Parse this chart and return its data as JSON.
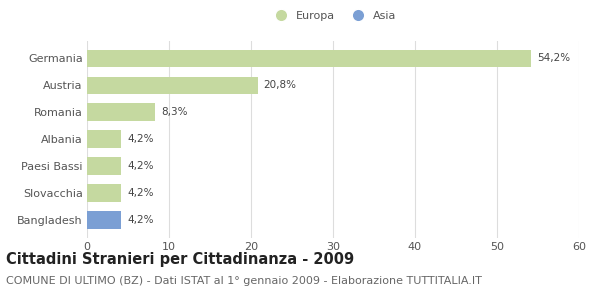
{
  "categories": [
    "Germania",
    "Austria",
    "Romania",
    "Albania",
    "Paesi Bassi",
    "Slovacchia",
    "Bangladesh"
  ],
  "values": [
    54.2,
    20.8,
    8.3,
    4.2,
    4.2,
    4.2,
    4.2
  ],
  "labels": [
    "54,2%",
    "20,8%",
    "8,3%",
    "4,2%",
    "4,2%",
    "4,2%",
    "4,2%"
  ],
  "colors": [
    "#c5d9a0",
    "#c5d9a0",
    "#c5d9a0",
    "#c5d9a0",
    "#c5d9a0",
    "#c5d9a0",
    "#7b9fd4"
  ],
  "europa_color": "#c5d9a0",
  "asia_color": "#7b9fd4",
  "xlim": [
    0,
    60
  ],
  "xticks": [
    0,
    10,
    20,
    30,
    40,
    50,
    60
  ],
  "title": "Cittadini Stranieri per Cittadinanza - 2009",
  "subtitle": "COMUNE DI ULTIMO (BZ) - Dati ISTAT al 1° gennaio 2009 - Elaborazione TUTTITALIA.IT",
  "legend_europa": "Europa",
  "legend_asia": "Asia",
  "title_fontsize": 10.5,
  "subtitle_fontsize": 8,
  "label_fontsize": 7.5,
  "tick_fontsize": 8,
  "bar_height": 0.65,
  "background_color": "#ffffff",
  "grid_color": "#dddddd",
  "text_color": "#444444",
  "yticklabel_color": "#555555"
}
